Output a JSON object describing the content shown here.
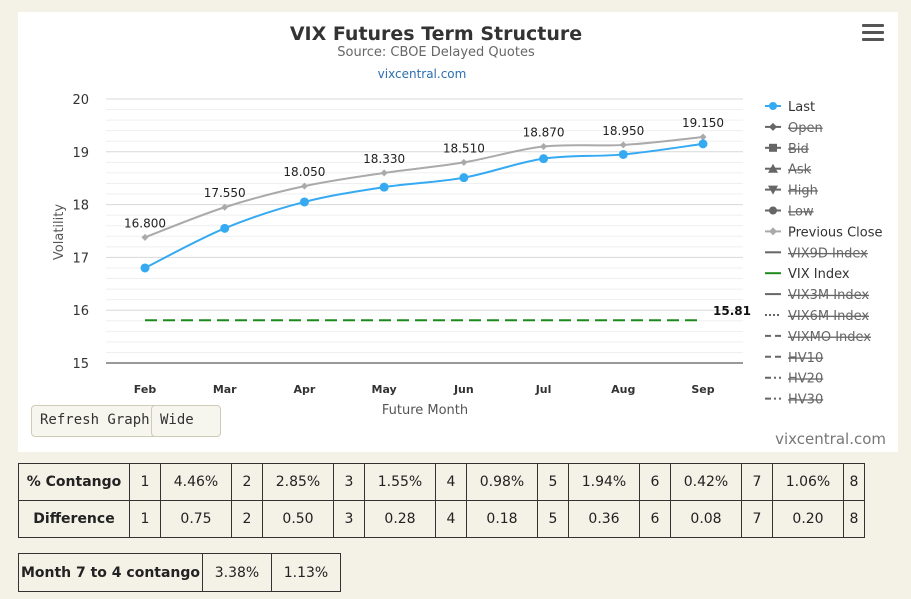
{
  "chart": {
    "site_link": "vixcentral.com",
    "credit": "vixcentral.com"
  },
  "buttons": {
    "refresh": "Refresh Graph",
    "wide": "Wide"
  },
  "chart_data": {
    "type": "line",
    "title": "VIX Futures Term Structure",
    "subtitle": "Source: CBOE Delayed Quotes",
    "xlabel": "Future Month",
    "ylabel": "Volatility",
    "ylim": [
      15,
      20
    ],
    "yticks": [
      15,
      16,
      17,
      18,
      19,
      20
    ],
    "categories": [
      "Feb",
      "Mar",
      "Apr",
      "May",
      "Jun",
      "Jul",
      "Aug",
      "Sep"
    ],
    "grid": true,
    "legend_position": "right",
    "series": [
      {
        "name": "Last",
        "values": [
          16.8,
          17.55,
          18.05,
          18.33,
          18.51,
          18.87,
          18.95,
          19.15
        ],
        "color": "#35aaf2",
        "visible": true,
        "marker": "circle",
        "labels": [
          "16.800",
          "17.550",
          "18.050",
          "18.330",
          "18.510",
          "18.870",
          "18.950",
          "19.150"
        ]
      },
      {
        "name": "Previous Close",
        "values": [
          17.38,
          17.95,
          18.35,
          18.6,
          18.8,
          19.1,
          19.13,
          19.28
        ],
        "color": "#aaaaaa",
        "visible": true,
        "marker": "diamond"
      },
      {
        "name": "VIX Index",
        "value": 15.81,
        "label": "15.81",
        "color": "#1e8a1e",
        "visible": true,
        "dash": "long"
      }
    ],
    "legend": [
      {
        "name": "Last",
        "visible": true,
        "symbol": "circle",
        "color": "#35aaf2"
      },
      {
        "name": "Open",
        "visible": false,
        "symbol": "diamond",
        "color": "#555555"
      },
      {
        "name": "Bid",
        "visible": false,
        "symbol": "square",
        "color": "#555555"
      },
      {
        "name": "Ask",
        "visible": false,
        "symbol": "triangle",
        "color": "#555555"
      },
      {
        "name": "High",
        "visible": false,
        "symbol": "triangle-down",
        "color": "#555555"
      },
      {
        "name": "Low",
        "visible": false,
        "symbol": "circle",
        "color": "#555555"
      },
      {
        "name": "Previous Close",
        "visible": true,
        "symbol": "diamond",
        "color": "#aaaaaa"
      },
      {
        "name": "VIX9D Index",
        "visible": false,
        "symbol": "line",
        "color": "#555555"
      },
      {
        "name": "VIX Index",
        "visible": true,
        "symbol": "line",
        "color": "#1e8a1e"
      },
      {
        "name": "VIX3M Index",
        "visible": false,
        "symbol": "line",
        "color": "#555555"
      },
      {
        "name": "VIX6M Index",
        "visible": false,
        "symbol": "dotted",
        "color": "#555555"
      },
      {
        "name": "VIXMO Index",
        "visible": false,
        "symbol": "dashed",
        "color": "#555555"
      },
      {
        "name": "HV10",
        "visible": false,
        "symbol": "dashed",
        "color": "#555555"
      },
      {
        "name": "HV20",
        "visible": false,
        "symbol": "dashdot",
        "color": "#555555"
      },
      {
        "name": "HV30",
        "visible": false,
        "symbol": "dashdot",
        "color": "#555555"
      }
    ]
  },
  "contango_table": {
    "rows": [
      {
        "header": "% Contango",
        "cells": [
          [
            "1",
            "4.46%"
          ],
          [
            "2",
            "2.85%"
          ],
          [
            "3",
            "1.55%"
          ],
          [
            "4",
            "0.98%"
          ],
          [
            "5",
            "1.94%"
          ],
          [
            "6",
            "0.42%"
          ],
          [
            "7",
            "1.06%"
          ]
        ],
        "last": "8"
      },
      {
        "header": "Difference",
        "cells": [
          [
            "1",
            "0.75"
          ],
          [
            "2",
            "0.50"
          ],
          [
            "3",
            "0.28"
          ],
          [
            "4",
            "0.18"
          ],
          [
            "5",
            "0.36"
          ],
          [
            "6",
            "0.08"
          ],
          [
            "7",
            "0.20"
          ]
        ],
        "last": "8"
      }
    ]
  },
  "month74": {
    "header": "Month 7 to 4 contango",
    "values": [
      "3.38%",
      "1.13%"
    ]
  }
}
